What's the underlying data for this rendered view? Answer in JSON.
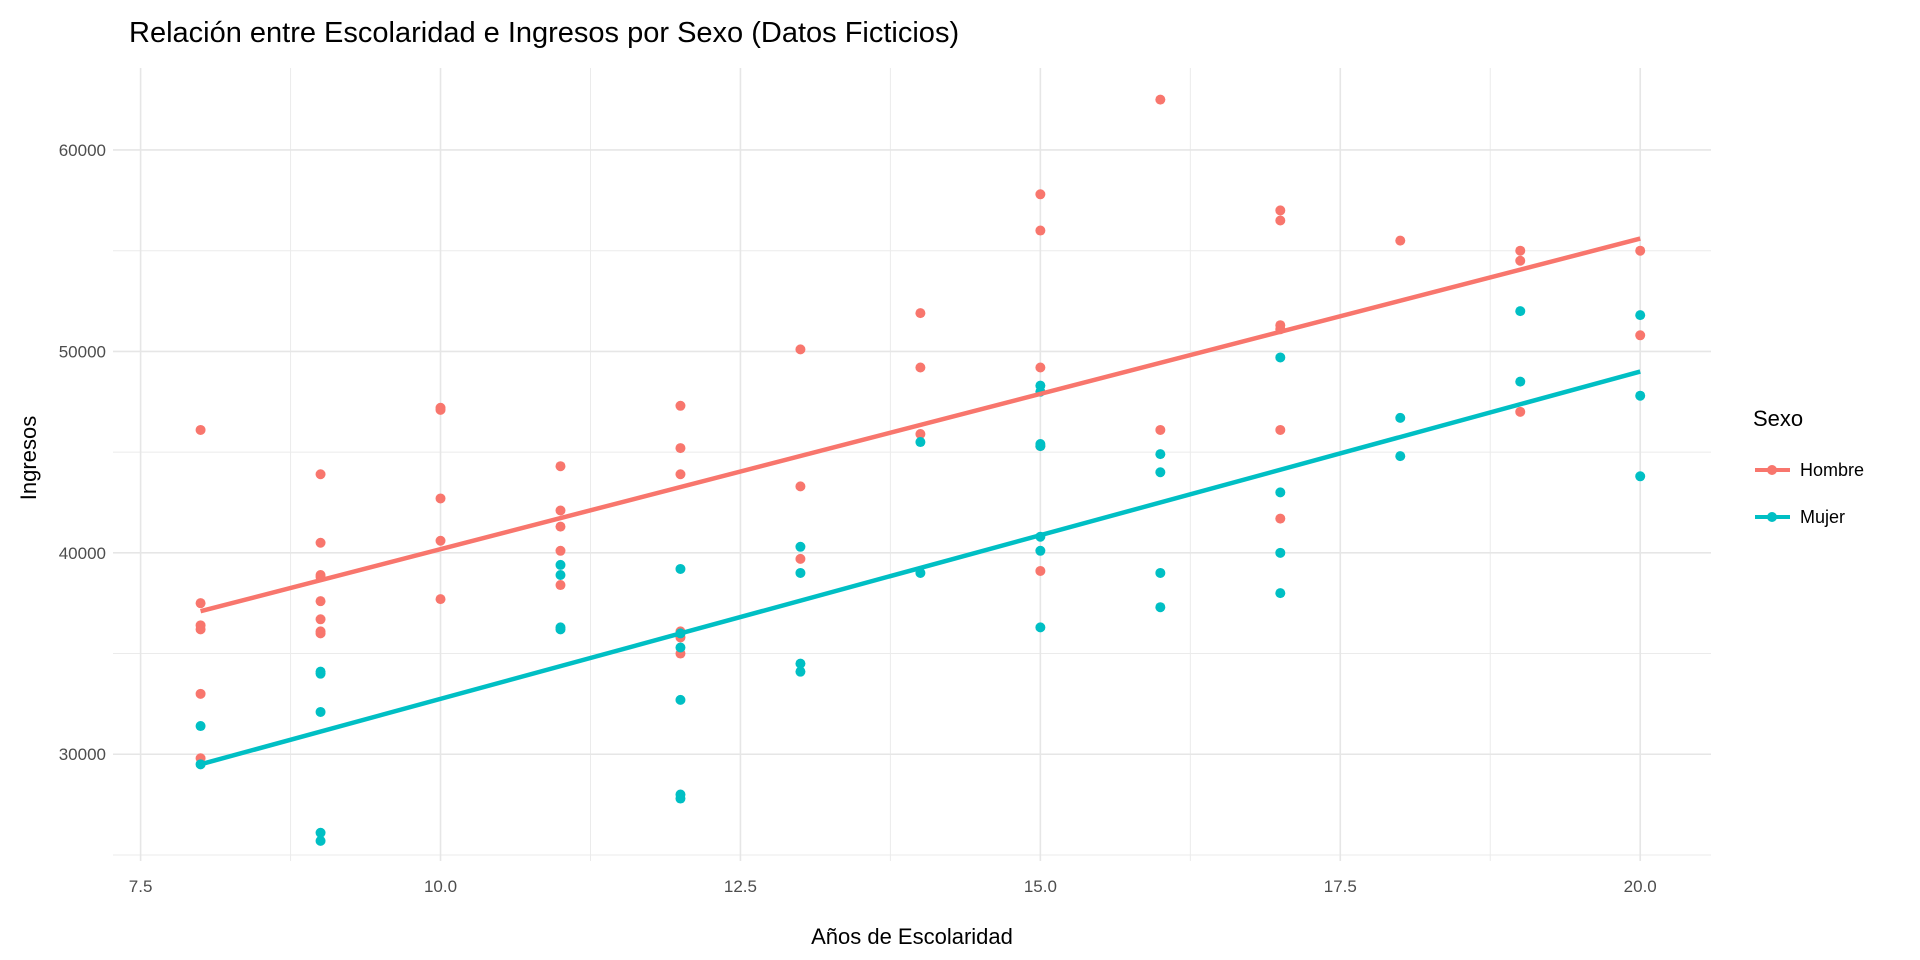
{
  "chart_data": {
    "type": "scatter",
    "title": "Relación entre Escolaridad e Ingresos por Sexo (Datos Ficticios)",
    "xlabel": "Años de Escolaridad",
    "ylabel": "Ingresos",
    "xlim": [
      7.27,
      20.59
    ],
    "ylim": [
      24700,
      64070
    ],
    "xticks": [
      7.5,
      10.0,
      12.5,
      15.0,
      17.5,
      20.0
    ],
    "xtick_labels": [
      "7.5",
      "10.0",
      "12.5",
      "15.0",
      "17.5",
      "20.0"
    ],
    "yticks": [
      30000,
      40000,
      50000,
      60000
    ],
    "ytick_labels": [
      "30000",
      "40000",
      "50000",
      "60000"
    ],
    "grid": true,
    "legend": {
      "title": "Sexo",
      "placement": "right"
    },
    "series": [
      {
        "name": "Hombre",
        "color": "#F8766D",
        "fit_line": [
          [
            8,
            37100
          ],
          [
            20,
            55600
          ]
        ],
        "points": [
          [
            8,
            46100
          ],
          [
            8,
            37500
          ],
          [
            8,
            36400
          ],
          [
            8,
            36200
          ],
          [
            8,
            33000
          ],
          [
            8,
            29800
          ],
          [
            9,
            43900
          ],
          [
            9,
            40500
          ],
          [
            9,
            38900
          ],
          [
            9,
            38800
          ],
          [
            9,
            37600
          ],
          [
            9,
            36700
          ],
          [
            9,
            36100
          ],
          [
            9,
            36000
          ],
          [
            10,
            47200
          ],
          [
            10,
            47100
          ],
          [
            10,
            42700
          ],
          [
            10,
            40600
          ],
          [
            10,
            37700
          ],
          [
            11,
            44300
          ],
          [
            11,
            42100
          ],
          [
            11,
            41300
          ],
          [
            11,
            40100
          ],
          [
            11,
            38400
          ],
          [
            12,
            47300
          ],
          [
            12,
            45200
          ],
          [
            12,
            43900
          ],
          [
            12,
            36100
          ],
          [
            12,
            35800
          ],
          [
            12,
            35000
          ],
          [
            13,
            50100
          ],
          [
            13,
            43300
          ],
          [
            13,
            39700
          ],
          [
            14,
            51900
          ],
          [
            14,
            49200
          ],
          [
            14,
            45900
          ],
          [
            15,
            57800
          ],
          [
            15,
            56000
          ],
          [
            15,
            49200
          ],
          [
            15,
            45300
          ],
          [
            15,
            39100
          ],
          [
            16,
            62500
          ],
          [
            16,
            46100
          ],
          [
            17,
            57000
          ],
          [
            17,
            56500
          ],
          [
            17,
            51300
          ],
          [
            17,
            51100
          ],
          [
            17,
            46100
          ],
          [
            17,
            41700
          ],
          [
            18,
            55500
          ],
          [
            19,
            55000
          ],
          [
            19,
            54500
          ],
          [
            19,
            47000
          ],
          [
            20,
            55000
          ],
          [
            20,
            50800
          ]
        ]
      },
      {
        "name": "Mujer",
        "color": "#00BFC4",
        "fit_line": [
          [
            8,
            29500
          ],
          [
            20,
            49000
          ]
        ],
        "points": [
          [
            8,
            31400
          ],
          [
            8,
            29500
          ],
          [
            9,
            34100
          ],
          [
            9,
            34000
          ],
          [
            9,
            32100
          ],
          [
            9,
            26100
          ],
          [
            9,
            25700
          ],
          [
            11,
            39400
          ],
          [
            11,
            38900
          ],
          [
            11,
            36300
          ],
          [
            11,
            36200
          ],
          [
            12,
            39200
          ],
          [
            12,
            36000
          ],
          [
            12,
            35300
          ],
          [
            12,
            32700
          ],
          [
            12,
            28000
          ],
          [
            12,
            27800
          ],
          [
            13,
            40300
          ],
          [
            13,
            39000
          ],
          [
            13,
            34500
          ],
          [
            13,
            34100
          ],
          [
            14,
            45500
          ],
          [
            14,
            39000
          ],
          [
            15,
            48300
          ],
          [
            15,
            48000
          ],
          [
            15,
            45400
          ],
          [
            15,
            45300
          ],
          [
            15,
            40800
          ],
          [
            15,
            40100
          ],
          [
            15,
            36300
          ],
          [
            16,
            44900
          ],
          [
            16,
            44000
          ],
          [
            16,
            39000
          ],
          [
            16,
            37300
          ],
          [
            17,
            49700
          ],
          [
            17,
            43000
          ],
          [
            17,
            40000
          ],
          [
            17,
            38000
          ],
          [
            18,
            46700
          ],
          [
            18,
            44800
          ],
          [
            19,
            52000
          ],
          [
            19,
            48500
          ],
          [
            20,
            51800
          ],
          [
            20,
            47800
          ],
          [
            20,
            43800
          ]
        ]
      }
    ]
  }
}
